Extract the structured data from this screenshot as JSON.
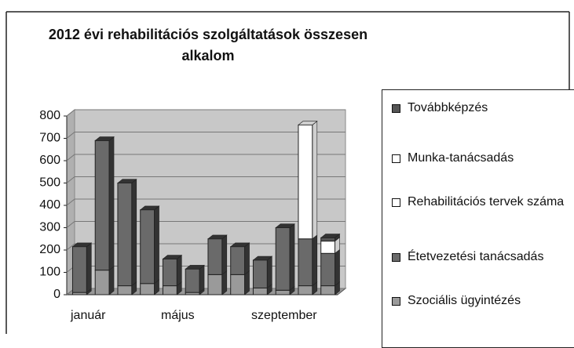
{
  "chart_data": {
    "type": "bar",
    "stacked": true,
    "title": [
      "2012 évi rehabilitációs szolgáltatások összesen",
      "alkalom"
    ],
    "categories": [
      "január",
      null,
      null,
      null,
      "május",
      null,
      null,
      null,
      "szeptember",
      null,
      null,
      null
    ],
    "series": [
      {
        "name": "Továbbképzés",
        "color": "#555555",
        "values": [
          0,
          0,
          0,
          0,
          0,
          0,
          0,
          0,
          0,
          0,
          0,
          15
        ]
      },
      {
        "name": "Munka-tanácsadás",
        "color": "#ffffff",
        "values": [
          0,
          0,
          0,
          0,
          0,
          0,
          0,
          0,
          0,
          0,
          0,
          0
        ]
      },
      {
        "name": "Rehabilitációs tervek száma",
        "color": "#ffffff",
        "values": [
          0,
          0,
          0,
          0,
          0,
          0,
          0,
          0,
          0,
          0,
          510,
          55
        ]
      },
      {
        "name": "Étetvezetési tanácsadás",
        "color": "#6a6a6a",
        "values": [
          205,
          580,
          460,
          330,
          120,
          105,
          160,
          125,
          125,
          280,
          210,
          145
        ]
      },
      {
        "name": "Szociális ügyintézés",
        "color": "#9a9a9a",
        "values": [
          10,
          110,
          40,
          50,
          40,
          10,
          90,
          90,
          30,
          20,
          40,
          40
        ]
      }
    ],
    "ylim": [
      0,
      800
    ],
    "yticks": [
      0,
      100,
      200,
      300,
      400,
      500,
      600,
      700,
      800
    ],
    "grid": true
  }
}
